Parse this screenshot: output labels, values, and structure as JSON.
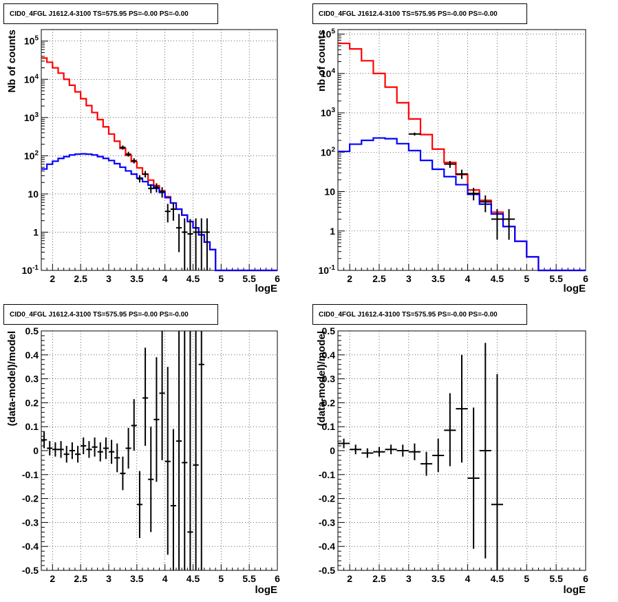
{
  "pads": [
    {
      "title": "CID0_4FGL J1612.4-3100 TS=575.95 PS=-0.00 PS=-0.00",
      "xlabel": "logE",
      "ylabel": "Nb of counts"
    },
    {
      "title": "CID0_4FGL J1612.4-3100 TS=575.95 PS=-0.00 PS=-0.00",
      "xlabel": "logE",
      "ylabel": "nb of counts"
    },
    {
      "title": "CID0_4FGL J1612.4-3100 TS=575.95 PS=-0.00 PS=-0.00",
      "xlabel": "logE",
      "ylabel": "(data-model)/model"
    },
    {
      "title": "CID0_4FGL J1612.4-3100 TS=575.95 PS=-0.00 PS=-0.00",
      "xlabel": "logE",
      "ylabel": "(data-model)/model"
    }
  ],
  "chart_data": [
    {
      "type": "line",
      "log_y": true,
      "grid": true,
      "xlim": [
        1.8,
        6.0
      ],
      "ylim": [
        0.1,
        200000
      ],
      "x_ticks": [
        "2",
        "2.5",
        "3",
        "3.5",
        "4",
        "4.5",
        "5",
        "5.5",
        "6"
      ],
      "y_ticks": [
        "10^-1",
        "1",
        "10",
        "10^2",
        "10^3",
        "10^4",
        "10^5"
      ],
      "bin_edges": [
        1.8,
        1.9,
        2.0,
        2.1,
        2.2,
        2.3,
        2.4,
        2.5,
        2.6,
        2.7,
        2.8,
        2.9,
        3.0,
        3.1,
        3.2,
        3.3,
        3.4,
        3.5,
        3.6,
        3.7,
        3.8,
        3.9,
        4.0,
        4.1,
        4.2,
        4.3,
        4.4,
        4.5,
        4.6,
        4.7,
        4.8,
        4.9,
        5.0,
        5.1,
        5.2,
        5.3,
        5.4,
        5.5,
        5.6,
        5.7,
        5.8,
        5.9,
        6.0
      ],
      "series": [
        {
          "color": "#ff0000",
          "values": [
            36000,
            28000,
            20000,
            14500,
            10000,
            7000,
            4700,
            3100,
            2050,
            1350,
            880,
            570,
            370,
            240,
            155,
            102,
            70,
            48,
            33,
            23,
            16.5,
            12,
            8.5,
            5.8,
            4,
            2.8,
            1.9,
            1.3,
            0.85,
            0.55,
            0.35,
            0.1,
            0.1,
            0.1,
            0.1,
            0.1,
            0.1,
            0.1,
            0.1,
            0.1,
            0.1,
            0.1
          ]
        },
        {
          "color": "#0000ff",
          "values": [
            45,
            60,
            72,
            85,
            95,
            105,
            110,
            112,
            110,
            105,
            95,
            85,
            75,
            62,
            50,
            40,
            33,
            26,
            21,
            17,
            14,
            11,
            8,
            5.8,
            4,
            2.8,
            1.9,
            1.3,
            0.85,
            0.55,
            0.35,
            0.1,
            0.1,
            0.1,
            0.1,
            0.1,
            0.1,
            0.1,
            0.1,
            0.1,
            0.1,
            0.1
          ]
        }
      ],
      "points": [
        {
          "x": 3.25,
          "y": 165,
          "xerr": 0.05,
          "ylo": 145,
          "yhi": 185
        },
        {
          "x": 3.35,
          "y": 110,
          "xerr": 0.05,
          "ylo": 95,
          "yhi": 127
        },
        {
          "x": 3.45,
          "y": 74,
          "xerr": 0.05,
          "ylo": 63,
          "yhi": 86
        },
        {
          "x": 3.55,
          "y": 25,
          "xerr": 0.05,
          "ylo": 20,
          "yhi": 31
        },
        {
          "x": 3.65,
          "y": 33,
          "xerr": 0.05,
          "ylo": 27,
          "yhi": 40
        },
        {
          "x": 3.75,
          "y": 14,
          "xerr": 0.05,
          "ylo": 10.5,
          "yhi": 18
        },
        {
          "x": 3.85,
          "y": 15,
          "xerr": 0.05,
          "ylo": 11,
          "yhi": 19
        },
        {
          "x": 3.95,
          "y": 11.5,
          "xerr": 0.05,
          "ylo": 8,
          "yhi": 15
        },
        {
          "x": 4.05,
          "y": 3.5,
          "xerr": 0.05,
          "ylo": 1.8,
          "yhi": 5.5
        },
        {
          "x": 4.15,
          "y": 4,
          "xerr": 0.05,
          "ylo": 2,
          "yhi": 6
        },
        {
          "x": 4.25,
          "y": 1.3,
          "xerr": 0.05,
          "ylo": 0.3,
          "yhi": 3
        },
        {
          "x": 4.35,
          "y": 1,
          "xerr": 0.05,
          "ylo": 0.1,
          "yhi": 2.3
        },
        {
          "x": 4.45,
          "y": 0.9,
          "xerr": 0.05,
          "ylo": 0.1,
          "yhi": 2.2
        },
        {
          "x": 4.55,
          "y": 1,
          "xerr": 0.05,
          "ylo": 0.1,
          "yhi": 2.3
        },
        {
          "x": 4.65,
          "y": 1,
          "xerr": 0.05,
          "ylo": 0.1,
          "yhi": 2.3
        },
        {
          "x": 4.75,
          "y": 1,
          "xerr": 0.05,
          "ylo": 0.1,
          "yhi": 2.3
        }
      ]
    },
    {
      "type": "line",
      "log_y": true,
      "grid": true,
      "xlim": [
        1.8,
        6.0
      ],
      "ylim": [
        0.1,
        130000
      ],
      "x_ticks": [
        "2",
        "2.5",
        "3",
        "3.5",
        "4",
        "4.5",
        "5",
        "5.5",
        "6"
      ],
      "y_ticks": [
        "10^-1",
        "1",
        "10",
        "10^2",
        "10^3",
        "10^4",
        "10^5"
      ],
      "bin_edges": [
        1.8,
        2.0,
        2.2,
        2.4,
        2.6,
        2.8,
        3.0,
        3.2,
        3.4,
        3.6,
        3.8,
        4.0,
        4.2,
        4.4,
        4.6,
        4.8,
        5.0,
        5.2,
        5.4,
        5.6,
        5.8,
        6.0
      ],
      "series": [
        {
          "color": "#ff0000",
          "values": [
            58000,
            42000,
            21000,
            10000,
            4500,
            1800,
            700,
            280,
            120,
            55,
            27,
            11,
            6,
            3,
            1.3,
            0.55,
            0.22,
            0.1,
            0.1,
            0.1,
            0.1
          ]
        },
        {
          "color": "#0000ff",
          "values": [
            105,
            160,
            200,
            230,
            220,
            165,
            110,
            62,
            37,
            24,
            15,
            8.5,
            4.8,
            2.7,
            1.3,
            0.55,
            0.22,
            0.1,
            0.1,
            0.1,
            0.1
          ]
        }
      ],
      "points": [
        {
          "x": 3.1,
          "y": 290,
          "xerr": 0.1,
          "ylo": 265,
          "yhi": 315
        },
        {
          "x": 3.7,
          "y": 50,
          "xerr": 0.1,
          "ylo": 40,
          "yhi": 60
        },
        {
          "x": 3.9,
          "y": 28,
          "xerr": 0.1,
          "ylo": 21,
          "yhi": 36
        },
        {
          "x": 4.1,
          "y": 9,
          "xerr": 0.1,
          "ylo": 6,
          "yhi": 12.5
        },
        {
          "x": 4.3,
          "y": 5.5,
          "xerr": 0.1,
          "ylo": 3,
          "yhi": 8
        },
        {
          "x": 4.5,
          "y": 2,
          "xerr": 0.1,
          "ylo": 0.6,
          "yhi": 3.6
        },
        {
          "x": 4.7,
          "y": 2,
          "xerr": 0.1,
          "ylo": 0.6,
          "yhi": 3.6
        }
      ]
    },
    {
      "type": "scatter",
      "log_y": false,
      "grid": true,
      "xlim": [
        1.8,
        6.0
      ],
      "ylim": [
        -0.5,
        0.5
      ],
      "x_ticks": [
        "2",
        "2.5",
        "3",
        "3.5",
        "4",
        "4.5",
        "5",
        "5.5",
        "6"
      ],
      "y_ticks": [
        "-0.5",
        "-0.4",
        "-0.3",
        "-0.2",
        "-0.1",
        "0",
        "0.1",
        "0.2",
        "0.3",
        "0.4",
        "0.5"
      ],
      "points": [
        {
          "x": 1.85,
          "y": 0.045,
          "xerr": 0.05,
          "ylo": 0.01,
          "yhi": 0.08
        },
        {
          "x": 1.95,
          "y": 0.01,
          "xerr": 0.05,
          "ylo": -0.02,
          "yhi": 0.04
        },
        {
          "x": 2.05,
          "y": 0.005,
          "xerr": 0.05,
          "ylo": -0.025,
          "yhi": 0.035
        },
        {
          "x": 2.15,
          "y": 0.005,
          "xerr": 0.05,
          "ylo": -0.03,
          "yhi": 0.04
        },
        {
          "x": 2.25,
          "y": -0.015,
          "xerr": 0.05,
          "ylo": -0.05,
          "yhi": 0.02
        },
        {
          "x": 2.35,
          "y": 0.0,
          "xerr": 0.05,
          "ylo": -0.035,
          "yhi": 0.035
        },
        {
          "x": 2.45,
          "y": -0.015,
          "xerr": 0.05,
          "ylo": -0.05,
          "yhi": 0.02
        },
        {
          "x": 2.55,
          "y": 0.02,
          "xerr": 0.05,
          "ylo": -0.015,
          "yhi": 0.055
        },
        {
          "x": 2.65,
          "y": 0.005,
          "xerr": 0.05,
          "ylo": -0.03,
          "yhi": 0.04
        },
        {
          "x": 2.75,
          "y": 0.015,
          "xerr": 0.05,
          "ylo": -0.025,
          "yhi": 0.055
        },
        {
          "x": 2.85,
          "y": -0.005,
          "xerr": 0.05,
          "ylo": -0.045,
          "yhi": 0.035
        },
        {
          "x": 2.95,
          "y": 0.01,
          "xerr": 0.05,
          "ylo": -0.035,
          "yhi": 0.055
        },
        {
          "x": 3.05,
          "y": -0.005,
          "xerr": 0.05,
          "ylo": -0.055,
          "yhi": 0.045
        },
        {
          "x": 3.15,
          "y": -0.03,
          "xerr": 0.05,
          "ylo": -0.09,
          "yhi": 0.03
        },
        {
          "x": 3.25,
          "y": -0.095,
          "xerr": 0.05,
          "ylo": -0.165,
          "yhi": -0.025
        },
        {
          "x": 3.35,
          "y": 0.01,
          "xerr": 0.05,
          "ylo": -0.075,
          "yhi": 0.095
        },
        {
          "x": 3.45,
          "y": 0.105,
          "xerr": 0.05,
          "ylo": 0.0,
          "yhi": 0.215
        },
        {
          "x": 3.55,
          "y": -0.225,
          "xerr": 0.05,
          "ylo": -0.365,
          "yhi": -0.085
        },
        {
          "x": 3.65,
          "y": 0.22,
          "xerr": 0.05,
          "ylo": 0.02,
          "yhi": 0.43
        },
        {
          "x": 3.75,
          "y": -0.12,
          "xerr": 0.05,
          "ylo": -0.34,
          "yhi": 0.1
        },
        {
          "x": 3.85,
          "y": 0.13,
          "xerr": 0.05,
          "ylo": -0.13,
          "yhi": 0.39
        },
        {
          "x": 3.95,
          "y": 0.24,
          "xerr": 0.05,
          "ylo": -0.04,
          "yhi": 0.52
        },
        {
          "x": 4.05,
          "y": -0.045,
          "xerr": 0.05,
          "ylo": -0.435,
          "yhi": 0.35
        },
        {
          "x": 4.15,
          "y": -0.23,
          "xerr": 0.05,
          "ylo": -0.55,
          "yhi": 0.09
        },
        {
          "x": 4.25,
          "y": 0.04,
          "xerr": 0.05,
          "ylo": -0.55,
          "yhi": 0.55
        },
        {
          "x": 4.35,
          "y": -0.05,
          "xerr": 0.05,
          "ylo": -0.55,
          "yhi": 0.55
        },
        {
          "x": 4.45,
          "y": -0.34,
          "xerr": 0.05,
          "ylo": -0.55,
          "yhi": 0.55
        },
        {
          "x": 4.55,
          "y": -0.06,
          "xerr": 0.05,
          "ylo": -0.55,
          "yhi": 0.55
        },
        {
          "x": 4.65,
          "y": 0.36,
          "xerr": 0.05,
          "ylo": -0.55,
          "yhi": 0.55
        }
      ]
    },
    {
      "type": "scatter",
      "log_y": false,
      "grid": true,
      "xlim": [
        1.8,
        6.0
      ],
      "ylim": [
        -0.5,
        0.5
      ],
      "x_ticks": [
        "2",
        "2.5",
        "3",
        "3.5",
        "4",
        "4.5",
        "5",
        "5.5",
        "6"
      ],
      "y_ticks": [
        "-0.5",
        "-0.4",
        "-0.3",
        "-0.2",
        "-0.1",
        "0",
        "0.1",
        "0.2",
        "0.3",
        "0.4",
        "0.5"
      ],
      "points": [
        {
          "x": 1.9,
          "y": 0.03,
          "xerr": 0.1,
          "ylo": 0.01,
          "yhi": 0.05
        },
        {
          "x": 2.1,
          "y": 0.005,
          "xerr": 0.1,
          "ylo": -0.015,
          "yhi": 0.025
        },
        {
          "x": 2.3,
          "y": -0.01,
          "xerr": 0.1,
          "ylo": -0.03,
          "yhi": 0.01
        },
        {
          "x": 2.5,
          "y": -0.005,
          "xerr": 0.1,
          "ylo": -0.025,
          "yhi": 0.015
        },
        {
          "x": 2.7,
          "y": 0.005,
          "xerr": 0.1,
          "ylo": -0.015,
          "yhi": 0.025
        },
        {
          "x": 2.9,
          "y": 0.0,
          "xerr": 0.1,
          "ylo": -0.025,
          "yhi": 0.025
        },
        {
          "x": 3.1,
          "y": -0.005,
          "xerr": 0.1,
          "ylo": -0.04,
          "yhi": 0.03
        },
        {
          "x": 3.3,
          "y": -0.055,
          "xerr": 0.1,
          "ylo": -0.105,
          "yhi": -0.005
        },
        {
          "x": 3.5,
          "y": -0.02,
          "xerr": 0.1,
          "ylo": -0.09,
          "yhi": 0.05
        },
        {
          "x": 3.7,
          "y": 0.085,
          "xerr": 0.1,
          "ylo": -0.065,
          "yhi": 0.24
        },
        {
          "x": 3.9,
          "y": 0.175,
          "xerr": 0.1,
          "ylo": -0.05,
          "yhi": 0.4
        },
        {
          "x": 4.1,
          "y": -0.115,
          "xerr": 0.1,
          "ylo": -0.41,
          "yhi": 0.18
        },
        {
          "x": 4.3,
          "y": 0.0,
          "xerr": 0.1,
          "ylo": -0.45,
          "yhi": 0.45
        },
        {
          "x": 4.5,
          "y": -0.225,
          "xerr": 0.1,
          "ylo": -0.55,
          "yhi": 0.32
        }
      ]
    }
  ]
}
